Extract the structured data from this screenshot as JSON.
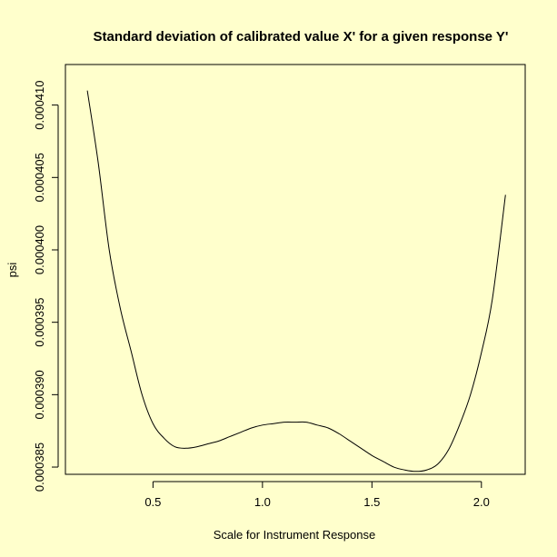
{
  "chart_data": {
    "type": "line",
    "title": "Standard deviation of calibrated value X' for a given response Y'",
    "xlabel": "Scale for Instrument Response",
    "ylabel": "psi",
    "xlim": [
      0.1,
      2.2
    ],
    "ylim": [
      0.0003845,
      0.0004128
    ],
    "x_ticks": [
      0.5,
      1.0,
      1.5,
      2.0
    ],
    "x_tick_labels": [
      "0.5",
      "1.0",
      "1.5",
      "2.0"
    ],
    "y_ticks": [
      0.000385,
      0.00039,
      0.000395,
      0.0004,
      0.000405,
      0.00041
    ],
    "y_tick_labels": [
      "0.000385",
      "0.000390",
      "0.000395",
      "0.000400",
      "0.000405",
      "0.000410"
    ],
    "grid": false,
    "background_color": "#FFFFCC",
    "line_color": "#000000",
    "series": [
      {
        "x": [
          0.2,
          0.25,
          0.3,
          0.35,
          0.4,
          0.45,
          0.5,
          0.55,
          0.6,
          0.65,
          0.7,
          0.75,
          0.8,
          0.85,
          0.9,
          0.95,
          1.0,
          1.05,
          1.1,
          1.15,
          1.2,
          1.25,
          1.3,
          1.35,
          1.4,
          1.45,
          1.5,
          1.55,
          1.6,
          1.65,
          1.7,
          1.75,
          1.8,
          1.85,
          1.9,
          1.95,
          2.0,
          2.05,
          2.11
        ],
        "y": [
          0.000411,
          0.000406,
          0.0004,
          0.000396,
          0.000393,
          0.00039,
          0.000388,
          0.000387,
          0.0003864,
          0.0003863,
          0.0003864,
          0.0003866,
          0.0003868,
          0.0003871,
          0.0003874,
          0.0003877,
          0.0003879,
          0.000388,
          0.0003881,
          0.0003881,
          0.0003881,
          0.0003879,
          0.0003877,
          0.0003873,
          0.0003868,
          0.0003863,
          0.0003858,
          0.0003854,
          0.000385,
          0.0003848,
          0.0003847,
          0.0003848,
          0.0003852,
          0.0003862,
          0.0003879,
          0.00039,
          0.0003929,
          0.0003966,
          0.0004038
        ]
      }
    ]
  }
}
